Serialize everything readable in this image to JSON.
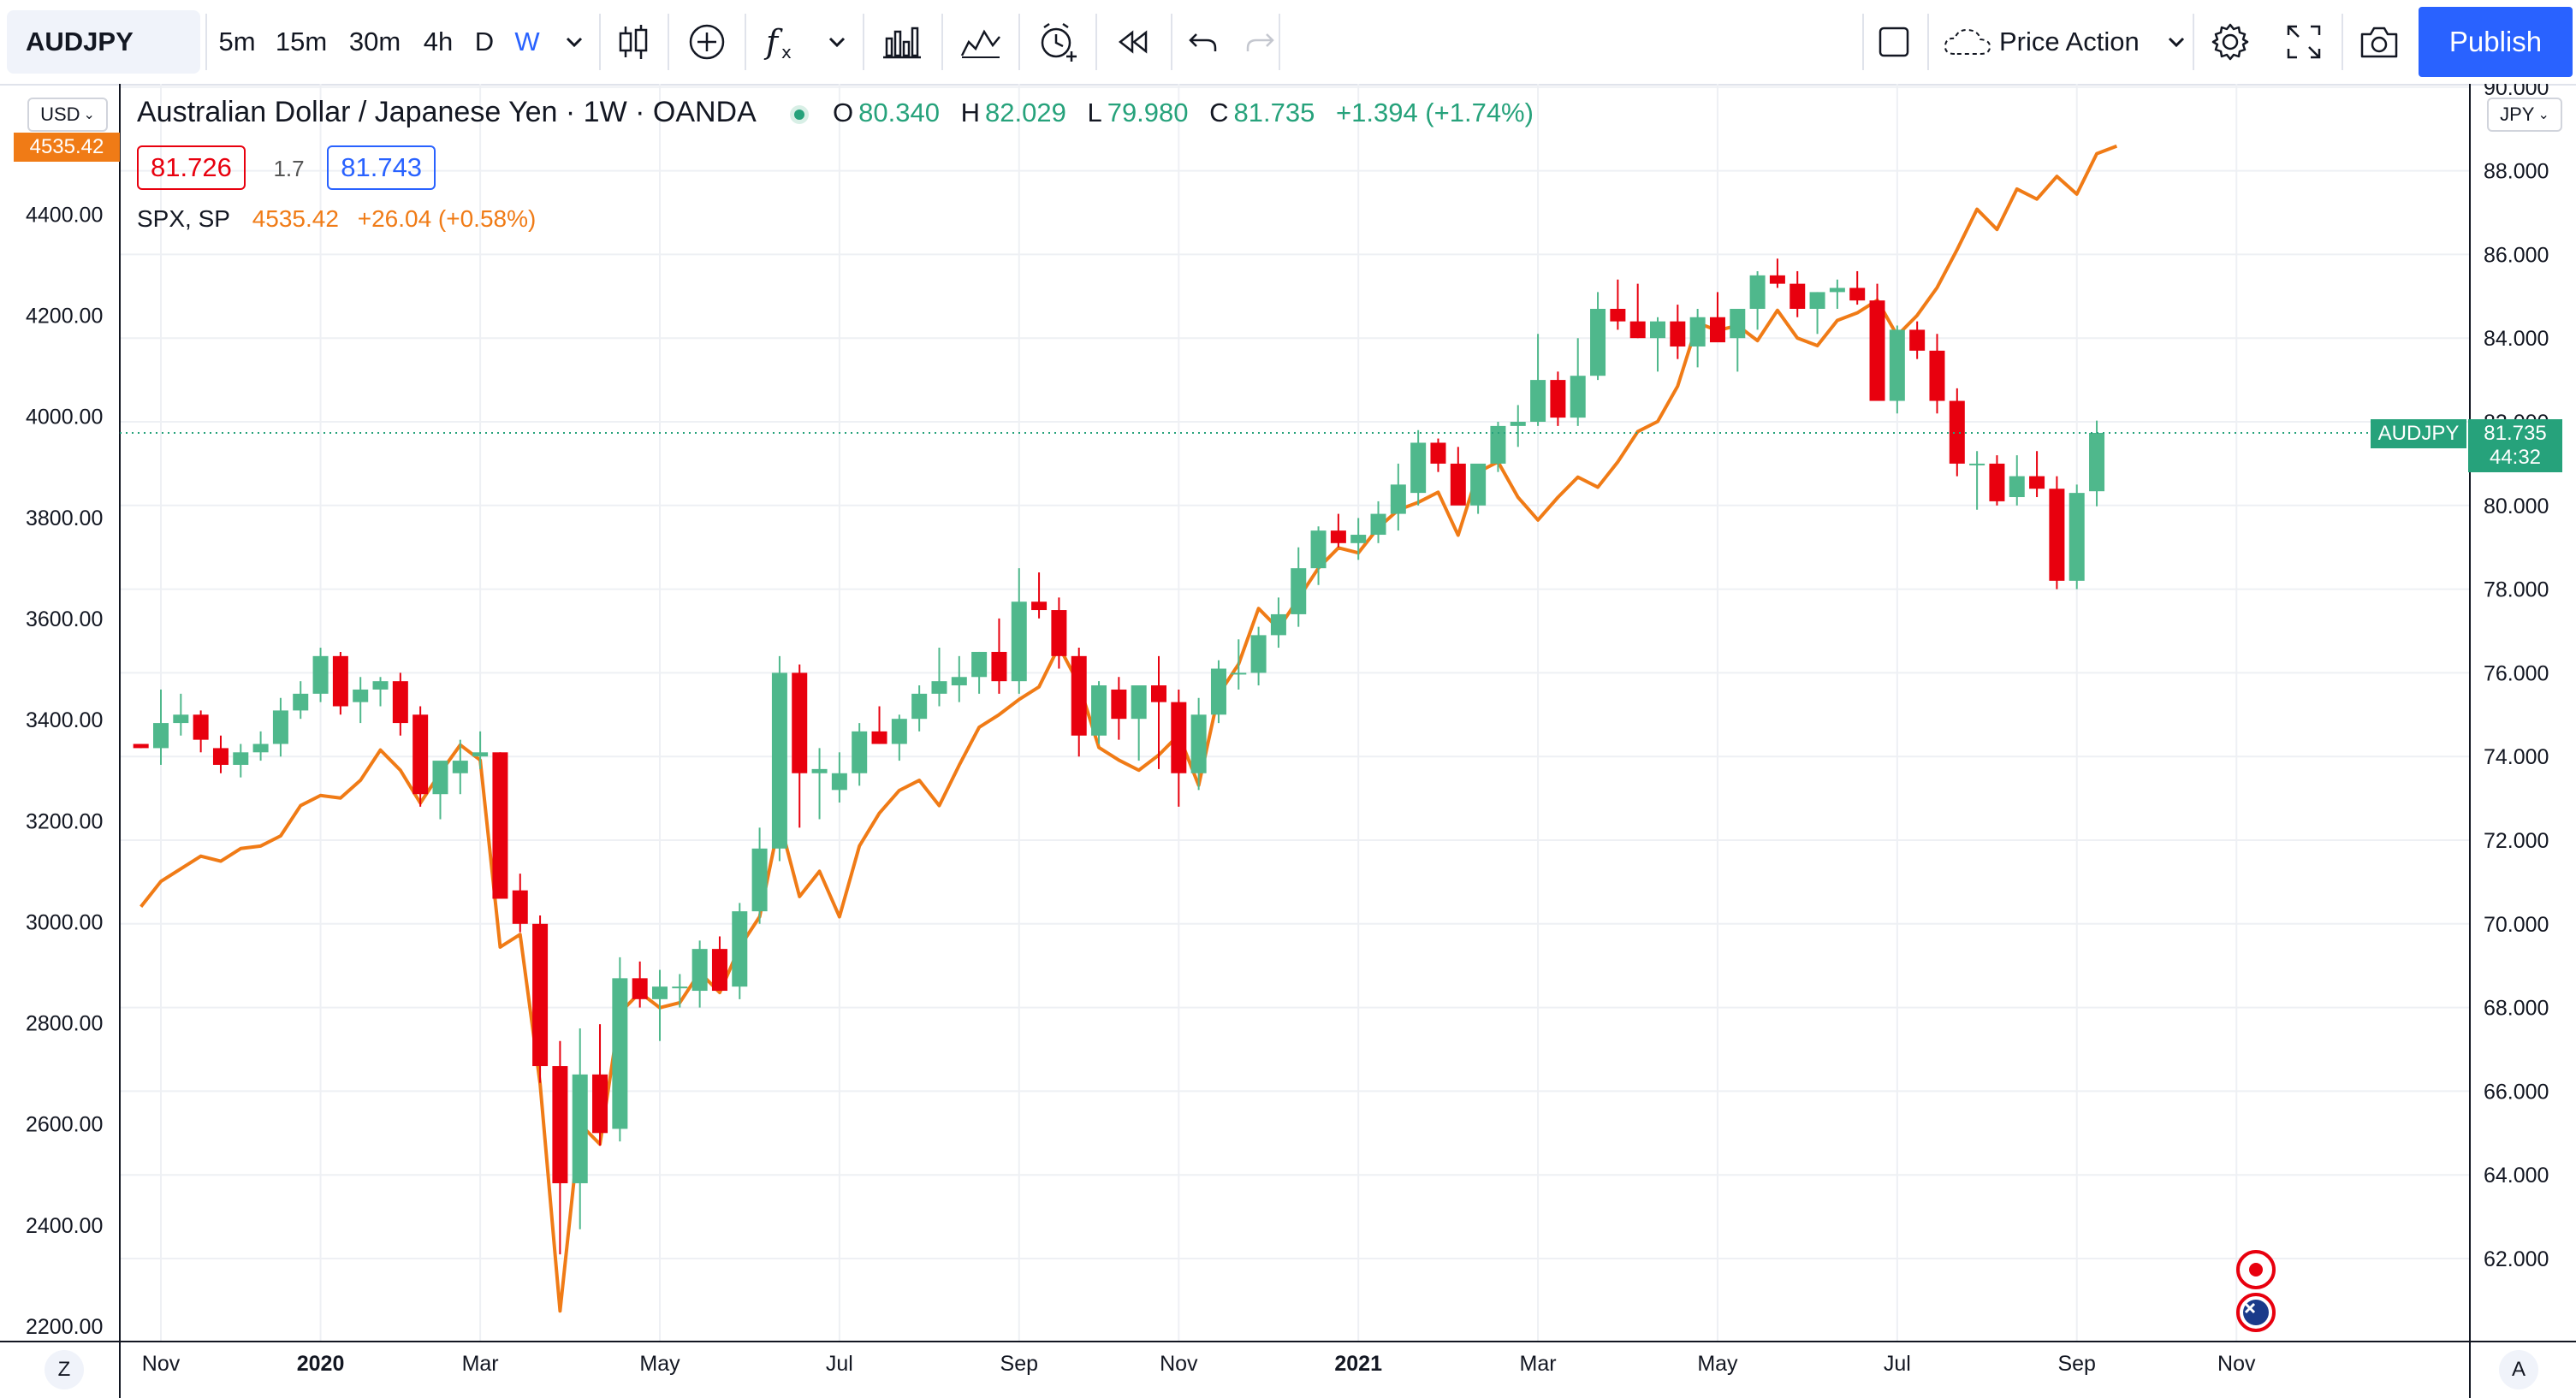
{
  "colors": {
    "up": "#4fb88c",
    "down": "#e8000e",
    "spx_line": "#f07b16",
    "grid": "#eef0f4",
    "accent": "#2962ff",
    "price_tag_green": "#26a27b",
    "price_tag_orange": "#f07b16"
  },
  "toolbar": {
    "symbol": "AUDJPY",
    "intervals": [
      "5m",
      "15m",
      "30m",
      "4h",
      "D",
      "W"
    ],
    "active_interval": "W",
    "tool_icons": [
      "candles-icon",
      "compare-plus-icon",
      "indicators-fx-icon",
      "chevron-down-icon",
      "templates-icon",
      "replay-indicators-icon",
      "alert-icon",
      "bar-replay-icon",
      "undo-icon",
      "redo-icon"
    ],
    "layout_name": "Price Action",
    "publish_label": "Publish"
  },
  "legend": {
    "title": "Australian Dollar / Japanese Yen · 1W · OANDA",
    "open_label": "O",
    "open": "80.340",
    "high_label": "H",
    "high": "82.029",
    "low_label": "L",
    "low": "79.980",
    "close_label": "C",
    "close": "81.735",
    "change": "+1.394 (+1.74%)",
    "bid": "81.726",
    "spread": "1.7",
    "ask": "81.743",
    "spx_name": "SPX, SP",
    "spx_value": "4535.42",
    "spx_change": "+26.04 (+0.58%)"
  },
  "scales": {
    "left_currency": "USD",
    "right_currency": "JPY",
    "left_tag_value": "4535.42",
    "right_tag_symbol": "AUDJPY",
    "right_tag_price": "81.735",
    "right_tag_countdown": "44:32"
  },
  "bottom": {
    "left_btn": "Z",
    "right_btn": "A"
  },
  "chart_data": {
    "type": "candlestick",
    "title": "Australian Dollar / Japanese Yen · 1W · OANDA",
    "right_axis": {
      "currency": "JPY",
      "min": 60,
      "max": 90,
      "ticks": [
        "62.000",
        "64.000",
        "66.000",
        "68.000",
        "70.000",
        "72.000",
        "74.000",
        "76.000",
        "78.000",
        "80.000",
        "82.000",
        "84.000",
        "86.000",
        "88.000",
        "90.000"
      ]
    },
    "left_axis": {
      "currency": "USD",
      "min": 2200,
      "max": 4600,
      "ticks": [
        "2200.00",
        "2400.00",
        "2600.00",
        "2800.00",
        "3000.00",
        "3200.00",
        "3400.00",
        "3600.00",
        "3800.00",
        "4000.00",
        "4200.00",
        "4400.00"
      ]
    },
    "x_axis": {
      "labels": [
        {
          "text": "Nov",
          "week": 1,
          "bold": false
        },
        {
          "text": "2020",
          "week": 9,
          "bold": true
        },
        {
          "text": "Mar",
          "week": 17,
          "bold": false
        },
        {
          "text": "May",
          "week": 26,
          "bold": false
        },
        {
          "text": "Jul",
          "week": 35,
          "bold": false
        },
        {
          "text": "Sep",
          "week": 44,
          "bold": false
        },
        {
          "text": "Nov",
          "week": 52,
          "bold": false
        },
        {
          "text": "2021",
          "week": 61,
          "bold": true
        },
        {
          "text": "Mar",
          "week": 70,
          "bold": false
        },
        {
          "text": "May",
          "week": 79,
          "bold": false
        },
        {
          "text": "Jul",
          "week": 88,
          "bold": false
        },
        {
          "text": "Sep",
          "week": 97,
          "bold": false
        },
        {
          "text": "Nov",
          "week": 105,
          "bold": false
        }
      ]
    },
    "series": [
      {
        "name": "AUDJPY",
        "style": "candles",
        "axis": "right",
        "ohlc": [
          [
            74.3,
            74.3,
            74.2,
            74.2
          ],
          [
            74.2,
            75.6,
            73.8,
            74.8
          ],
          [
            74.8,
            75.5,
            74.5,
            75.0
          ],
          [
            75.0,
            75.1,
            74.1,
            74.4
          ],
          [
            74.2,
            74.5,
            73.6,
            73.8
          ],
          [
            73.8,
            74.3,
            73.5,
            74.1
          ],
          [
            74.1,
            74.6,
            73.9,
            74.3
          ],
          [
            74.3,
            75.4,
            74.0,
            75.1
          ],
          [
            75.1,
            75.8,
            74.9,
            75.5
          ],
          [
            75.5,
            76.6,
            75.3,
            76.4
          ],
          [
            76.4,
            76.5,
            75.0,
            75.2
          ],
          [
            75.3,
            75.9,
            74.8,
            75.6
          ],
          [
            75.6,
            75.9,
            75.2,
            75.8
          ],
          [
            75.8,
            76.0,
            74.5,
            74.8
          ],
          [
            75.0,
            75.2,
            72.8,
            73.1
          ],
          [
            73.1,
            73.6,
            72.5,
            73.9
          ],
          [
            73.6,
            74.4,
            73.1,
            73.9
          ],
          [
            74.0,
            74.6,
            73.7,
            74.1
          ],
          [
            74.1,
            74.1,
            70.8,
            70.6
          ],
          [
            70.8,
            71.2,
            69.8,
            70.0
          ],
          [
            70.0,
            70.2,
            66.2,
            66.6
          ],
          [
            66.6,
            67.2,
            62.1,
            63.8
          ],
          [
            63.8,
            67.5,
            62.7,
            66.4
          ],
          [
            66.4,
            67.6,
            64.7,
            65.0
          ],
          [
            65.1,
            69.2,
            64.8,
            68.7
          ],
          [
            68.7,
            69.1,
            68.0,
            68.2
          ],
          [
            68.2,
            68.9,
            67.2,
            68.5
          ],
          [
            68.5,
            68.8,
            68.0,
            68.5
          ],
          [
            68.4,
            69.6,
            68.0,
            69.4
          ],
          [
            69.4,
            69.7,
            68.5,
            68.4
          ],
          [
            68.5,
            70.5,
            68.2,
            70.3
          ],
          [
            70.3,
            72.3,
            70.0,
            71.8
          ],
          [
            71.8,
            76.4,
            71.5,
            76.0
          ],
          [
            76.0,
            76.2,
            72.3,
            73.6
          ],
          [
            73.6,
            74.2,
            72.5,
            73.7
          ],
          [
            73.2,
            74.1,
            72.9,
            73.6
          ],
          [
            73.6,
            74.8,
            73.3,
            74.6
          ],
          [
            74.6,
            75.2,
            74.3,
            74.3
          ],
          [
            74.3,
            75.0,
            73.9,
            74.9
          ],
          [
            74.9,
            75.7,
            74.6,
            75.5
          ],
          [
            75.5,
            76.6,
            75.2,
            75.8
          ],
          [
            75.7,
            76.4,
            75.3,
            75.9
          ],
          [
            75.9,
            76.5,
            75.5,
            76.5
          ],
          [
            76.5,
            77.3,
            75.5,
            75.8
          ],
          [
            75.8,
            78.5,
            75.5,
            77.7
          ],
          [
            77.7,
            78.4,
            77.3,
            77.5
          ],
          [
            77.5,
            77.8,
            76.1,
            76.4
          ],
          [
            76.4,
            76.6,
            74.0,
            74.5
          ],
          [
            74.5,
            75.8,
            74.3,
            75.7
          ],
          [
            75.6,
            75.9,
            74.4,
            74.9
          ],
          [
            74.9,
            75.2,
            73.9,
            75.7
          ],
          [
            75.7,
            76.4,
            73.7,
            75.3
          ],
          [
            75.3,
            75.6,
            72.8,
            73.6
          ],
          [
            73.6,
            75.4,
            73.2,
            75.0
          ],
          [
            75.0,
            76.3,
            74.8,
            76.1
          ],
          [
            76.0,
            76.8,
            75.6,
            76.0
          ],
          [
            76.0,
            77.1,
            75.7,
            76.9
          ],
          [
            76.9,
            77.8,
            76.6,
            77.4
          ],
          [
            77.4,
            79.0,
            77.1,
            78.5
          ],
          [
            78.5,
            79.5,
            78.1,
            79.4
          ],
          [
            79.4,
            79.8,
            79.0,
            79.1
          ],
          [
            79.1,
            79.7,
            78.7,
            79.3
          ],
          [
            79.3,
            80.1,
            79.1,
            79.8
          ],
          [
            79.8,
            81.0,
            79.4,
            80.5
          ],
          [
            80.3,
            81.8,
            80.0,
            81.5
          ],
          [
            81.5,
            81.6,
            80.8,
            81.0
          ],
          [
            81.0,
            81.4,
            80.4,
            80.0
          ],
          [
            80.0,
            80.8,
            79.8,
            81.0
          ],
          [
            81.0,
            82.0,
            80.8,
            81.9
          ],
          [
            81.9,
            82.4,
            81.4,
            82.0
          ],
          [
            82.0,
            84.1,
            81.9,
            83.0
          ],
          [
            83.0,
            83.2,
            81.9,
            82.1
          ],
          [
            82.1,
            84.0,
            81.9,
            83.1
          ],
          [
            83.1,
            85.1,
            83.0,
            84.7
          ],
          [
            84.7,
            85.4,
            84.2,
            84.4
          ],
          [
            84.4,
            85.3,
            84.0,
            84.0
          ],
          [
            84.0,
            84.5,
            83.2,
            84.4
          ],
          [
            84.4,
            84.8,
            83.5,
            83.8
          ],
          [
            83.8,
            84.7,
            83.3,
            84.5
          ],
          [
            84.5,
            85.1,
            84.2,
            83.9
          ],
          [
            84.0,
            84.6,
            83.2,
            84.7
          ],
          [
            84.7,
            85.6,
            84.2,
            85.5
          ],
          [
            85.5,
            85.9,
            85.2,
            85.3
          ],
          [
            85.3,
            85.6,
            84.5,
            84.7
          ],
          [
            84.7,
            85.1,
            84.1,
            85.1
          ],
          [
            85.1,
            85.4,
            84.7,
            85.2
          ],
          [
            85.2,
            85.6,
            84.8,
            84.9
          ],
          [
            84.9,
            85.3,
            82.8,
            82.5
          ],
          [
            82.5,
            84.3,
            82.2,
            84.2
          ],
          [
            84.2,
            84.4,
            83.5,
            83.7
          ],
          [
            83.7,
            84.1,
            82.2,
            82.5
          ],
          [
            82.5,
            82.8,
            80.7,
            81.0
          ],
          [
            81.0,
            81.3,
            79.9,
            81.0
          ],
          [
            81.0,
            81.2,
            80.0,
            80.1
          ],
          [
            80.2,
            81.2,
            80.0,
            80.7
          ],
          [
            80.7,
            81.3,
            80.2,
            80.4
          ],
          [
            80.4,
            80.7,
            78.0,
            78.2
          ],
          [
            78.2,
            80.5,
            78.0,
            80.3
          ],
          [
            80.34,
            82.029,
            79.98,
            81.735
          ]
        ]
      },
      {
        "name": "SPX, SP",
        "style": "line",
        "axis": "left",
        "values": [
          3030,
          3080,
          3105,
          3130,
          3120,
          3145,
          3150,
          3170,
          3230,
          3250,
          3245,
          3280,
          3340,
          3300,
          3235,
          3295,
          3350,
          3320,
          2950,
          2975,
          2680,
          2230,
          2600,
          2560,
          2820,
          2860,
          2830,
          2840,
          2900,
          2860,
          2950,
          3010,
          3200,
          3050,
          3100,
          3010,
          3150,
          3215,
          3260,
          3280,
          3230,
          3310,
          3385,
          3410,
          3440,
          3465,
          3545,
          3470,
          3345,
          3320,
          3300,
          3330,
          3370,
          3270,
          3450,
          3510,
          3620,
          3580,
          3640,
          3700,
          3740,
          3730,
          3780,
          3815,
          3830,
          3850,
          3765,
          3890,
          3910,
          3840,
          3795,
          3840,
          3880,
          3860,
          3910,
          3970,
          3990,
          4060,
          4185,
          4170,
          4180,
          4150,
          4210,
          4155,
          4140,
          4190,
          4205,
          4230,
          4160,
          4200,
          4255,
          4330,
          4410,
          4370,
          4450,
          4430,
          4475,
          4440,
          4520,
          4535
        ]
      }
    ]
  }
}
